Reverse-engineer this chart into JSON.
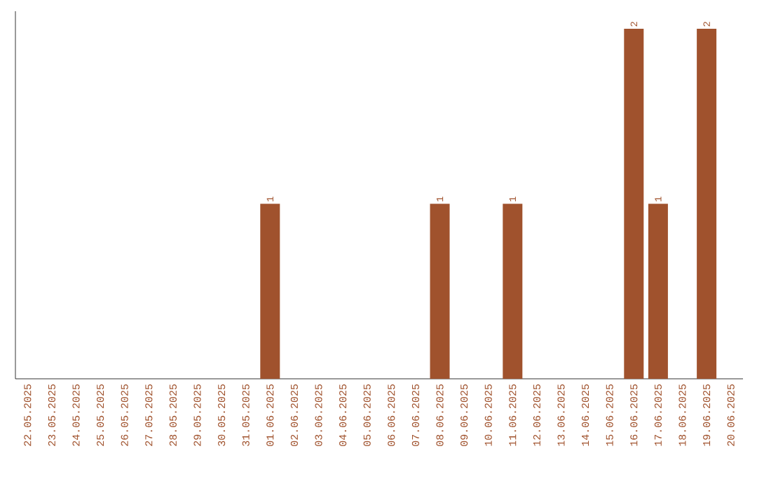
{
  "chart_data": {
    "type": "bar",
    "color": "#a0522d",
    "categories": [
      "22.05.2025",
      "23.05.2025",
      "24.05.2025",
      "25.05.2025",
      "26.05.2025",
      "27.05.2025",
      "28.05.2025",
      "29.05.2025",
      "30.05.2025",
      "31.05.2025",
      "01.06.2025",
      "02.06.2025",
      "03.06.2025",
      "04.06.2025",
      "05.06.2025",
      "06.06.2025",
      "07.06.2025",
      "08.06.2025",
      "09.06.2025",
      "10.06.2025",
      "11.06.2025",
      "12.06.2025",
      "13.06.2025",
      "14.06.2025",
      "15.06.2025",
      "16.06.2025",
      "17.06.2025",
      "18.06.2025",
      "19.06.2025",
      "20.06.2025"
    ],
    "values": [
      0,
      0,
      0,
      0,
      0,
      0,
      0,
      0,
      0,
      0,
      1,
      0,
      0,
      0,
      0,
      0,
      0,
      1,
      0,
      0,
      1,
      0,
      0,
      0,
      0,
      2,
      1,
      0,
      2,
      0
    ],
    "value_labels": [
      null,
      null,
      null,
      null,
      null,
      null,
      null,
      null,
      null,
      null,
      "1",
      null,
      null,
      null,
      null,
      null,
      null,
      "1",
      null,
      null,
      "1",
      null,
      null,
      null,
      null,
      "2",
      "1",
      null,
      "2",
      null
    ],
    "tick_labels": "x",
    "grid": false
  }
}
